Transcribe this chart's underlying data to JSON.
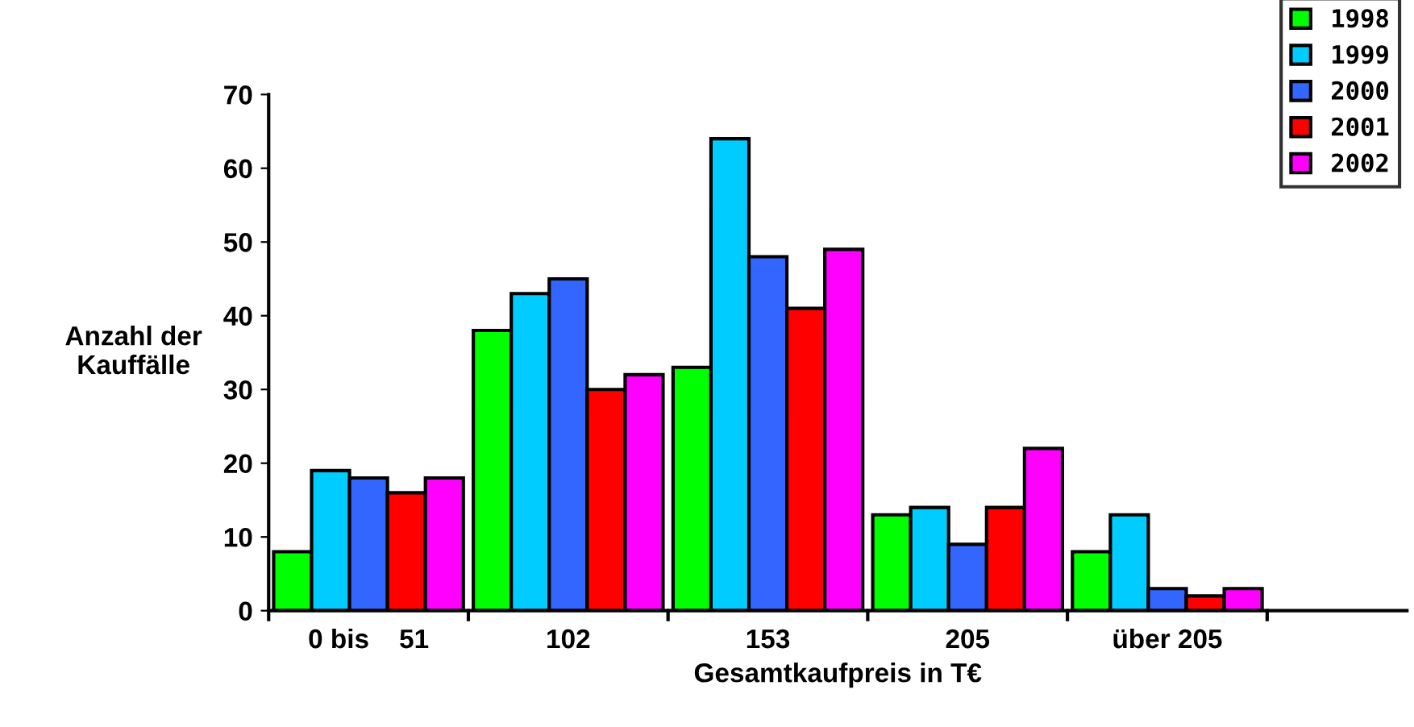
{
  "chart_data": {
    "type": "bar",
    "xlabel": "Gesamtkaufpreis in T€",
    "ylabel": "Anzahl der\nKauffälle",
    "categories": [
      "0 bis    51",
      "102",
      "153",
      "205",
      "über 205"
    ],
    "series": [
      {
        "name": "1998",
        "color": "#00ff00",
        "values": [
          8,
          38,
          33,
          13,
          8
        ]
      },
      {
        "name": "1999",
        "color": "#00ccff",
        "values": [
          19,
          43,
          64,
          14,
          13
        ]
      },
      {
        "name": "2000",
        "color": "#3366ff",
        "values": [
          18,
          45,
          48,
          9,
          3
        ]
      },
      {
        "name": "2001",
        "color": "#ff0000",
        "values": [
          16,
          30,
          41,
          14,
          2
        ]
      },
      {
        "name": "2002",
        "color": "#ff00ff",
        "values": [
          18,
          32,
          49,
          22,
          3
        ]
      }
    ],
    "ylim": [
      0,
      70
    ],
    "yticks": [
      0,
      10,
      20,
      30,
      40,
      50,
      60,
      70
    ],
    "grid": false,
    "legend": "top right"
  }
}
